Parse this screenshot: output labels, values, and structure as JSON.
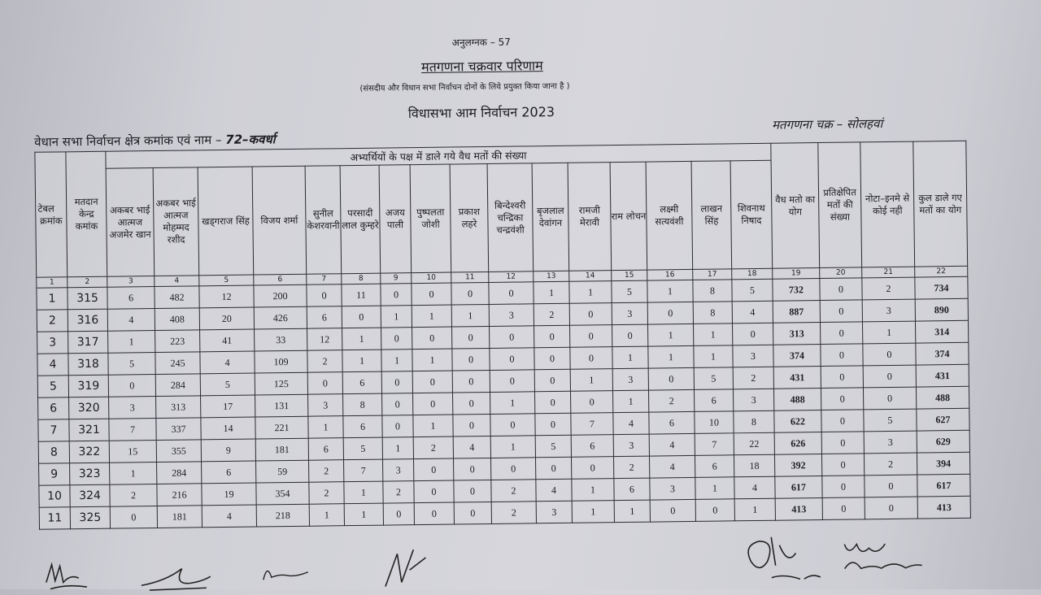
{
  "header": {
    "annex": "अनुलग्नक – 57",
    "title": "मतगणना चक्रवार परिणाम",
    "subtitle": "(संसदीय और विधान सभा निर्वाचन दोनों के लिये प्रयुक्त किया जाना है )",
    "election": "विधासभा आम निर्वाचन 2023",
    "constituency_label": "वेधान सभा निर्वाचन क्षेत्र कमांक एवं नाम – ",
    "constituency_name": "72–कवर्धा",
    "round": "मतगणना चक्र – सोलहवां"
  },
  "table": {
    "span_header": "अभ्यर्थियों के पक्ष में डाले गये वैध मतों की संख्या",
    "columns": [
      "टेबल क्रमांक",
      "मतदान केन्द्र कमांक",
      "अकबर भाई आत्मज अजमेर खान",
      "अकबर भाई आत्मज मोहम्मद रशीद",
      "खड्गराज सिंह",
      "विजय शर्मा",
      "सुनील केशरवानी",
      "परसादी लाल कुम्हरे",
      "अजय पाली",
      "पुष्पलता जोशी",
      "प्रकाश लहरे",
      "बिन्देश्वरी चन्द्रिका चन्द्रवंशी",
      "बृजलाल देवांगन",
      "रामजी मेरावी",
      "राम लोचन",
      "लक्ष्मी सत्यवंशी",
      "लाखन सिंह",
      "शिवनाथ निषाद",
      "वैध मतो का योग",
      "प्रतिक्षेपित मतों की संख्या",
      "नोटा–इनमे से कोई नही",
      "कुल डाले गए मतों का योग"
    ],
    "column_numbers": [
      "1",
      "2",
      "3",
      "4",
      "5",
      "6",
      "7",
      "8",
      "9",
      "10",
      "11",
      "12",
      "13",
      "14",
      "15",
      "16",
      "17",
      "18",
      "19",
      "20",
      "21",
      "22"
    ],
    "rows": [
      [
        "1",
        "315",
        "6",
        "482",
        "12",
        "200",
        "0",
        "11",
        "0",
        "0",
        "0",
        "0",
        "1",
        "1",
        "5",
        "1",
        "8",
        "5",
        "732",
        "0",
        "2",
        "734"
      ],
      [
        "2",
        "316",
        "4",
        "408",
        "20",
        "426",
        "6",
        "0",
        "1",
        "1",
        "1",
        "3",
        "2",
        "0",
        "3",
        "0",
        "8",
        "4",
        "887",
        "0",
        "3",
        "890"
      ],
      [
        "3",
        "317",
        "1",
        "223",
        "41",
        "33",
        "12",
        "1",
        "0",
        "0",
        "0",
        "0",
        "0",
        "0",
        "0",
        "1",
        "1",
        "0",
        "313",
        "0",
        "1",
        "314"
      ],
      [
        "4",
        "318",
        "5",
        "245",
        "4",
        "109",
        "2",
        "1",
        "1",
        "1",
        "0",
        "0",
        "0",
        "0",
        "1",
        "1",
        "1",
        "3",
        "374",
        "0",
        "0",
        "374"
      ],
      [
        "5",
        "319",
        "0",
        "284",
        "5",
        "125",
        "0",
        "6",
        "0",
        "0",
        "0",
        "0",
        "0",
        "1",
        "3",
        "0",
        "5",
        "2",
        "431",
        "0",
        "0",
        "431"
      ],
      [
        "6",
        "320",
        "3",
        "313",
        "17",
        "131",
        "3",
        "8",
        "0",
        "0",
        "0",
        "1",
        "0",
        "0",
        "1",
        "2",
        "6",
        "3",
        "488",
        "0",
        "0",
        "488"
      ],
      [
        "7",
        "321",
        "7",
        "337",
        "14",
        "221",
        "1",
        "6",
        "0",
        "1",
        "0",
        "0",
        "0",
        "7",
        "4",
        "6",
        "10",
        "8",
        "622",
        "0",
        "5",
        "627"
      ],
      [
        "8",
        "322",
        "15",
        "355",
        "9",
        "181",
        "6",
        "5",
        "1",
        "2",
        "4",
        "1",
        "5",
        "6",
        "3",
        "4",
        "7",
        "22",
        "626",
        "0",
        "3",
        "629"
      ],
      [
        "9",
        "323",
        "1",
        "284",
        "6",
        "59",
        "2",
        "7",
        "3",
        "0",
        "0",
        "0",
        "0",
        "0",
        "2",
        "4",
        "6",
        "18",
        "392",
        "0",
        "2",
        "394"
      ],
      [
        "10",
        "324",
        "2",
        "216",
        "19",
        "354",
        "2",
        "1",
        "2",
        "0",
        "0",
        "2",
        "4",
        "1",
        "6",
        "3",
        "1",
        "4",
        "617",
        "0",
        "0",
        "617"
      ],
      [
        "11",
        "325",
        "0",
        "181",
        "4",
        "218",
        "1",
        "1",
        "0",
        "0",
        "0",
        "2",
        "3",
        "1",
        "1",
        "0",
        "0",
        "1",
        "413",
        "0",
        "0",
        "413"
      ]
    ]
  },
  "colors": {
    "paper": "#d2d2d8",
    "ink": "#1c1c22"
  }
}
